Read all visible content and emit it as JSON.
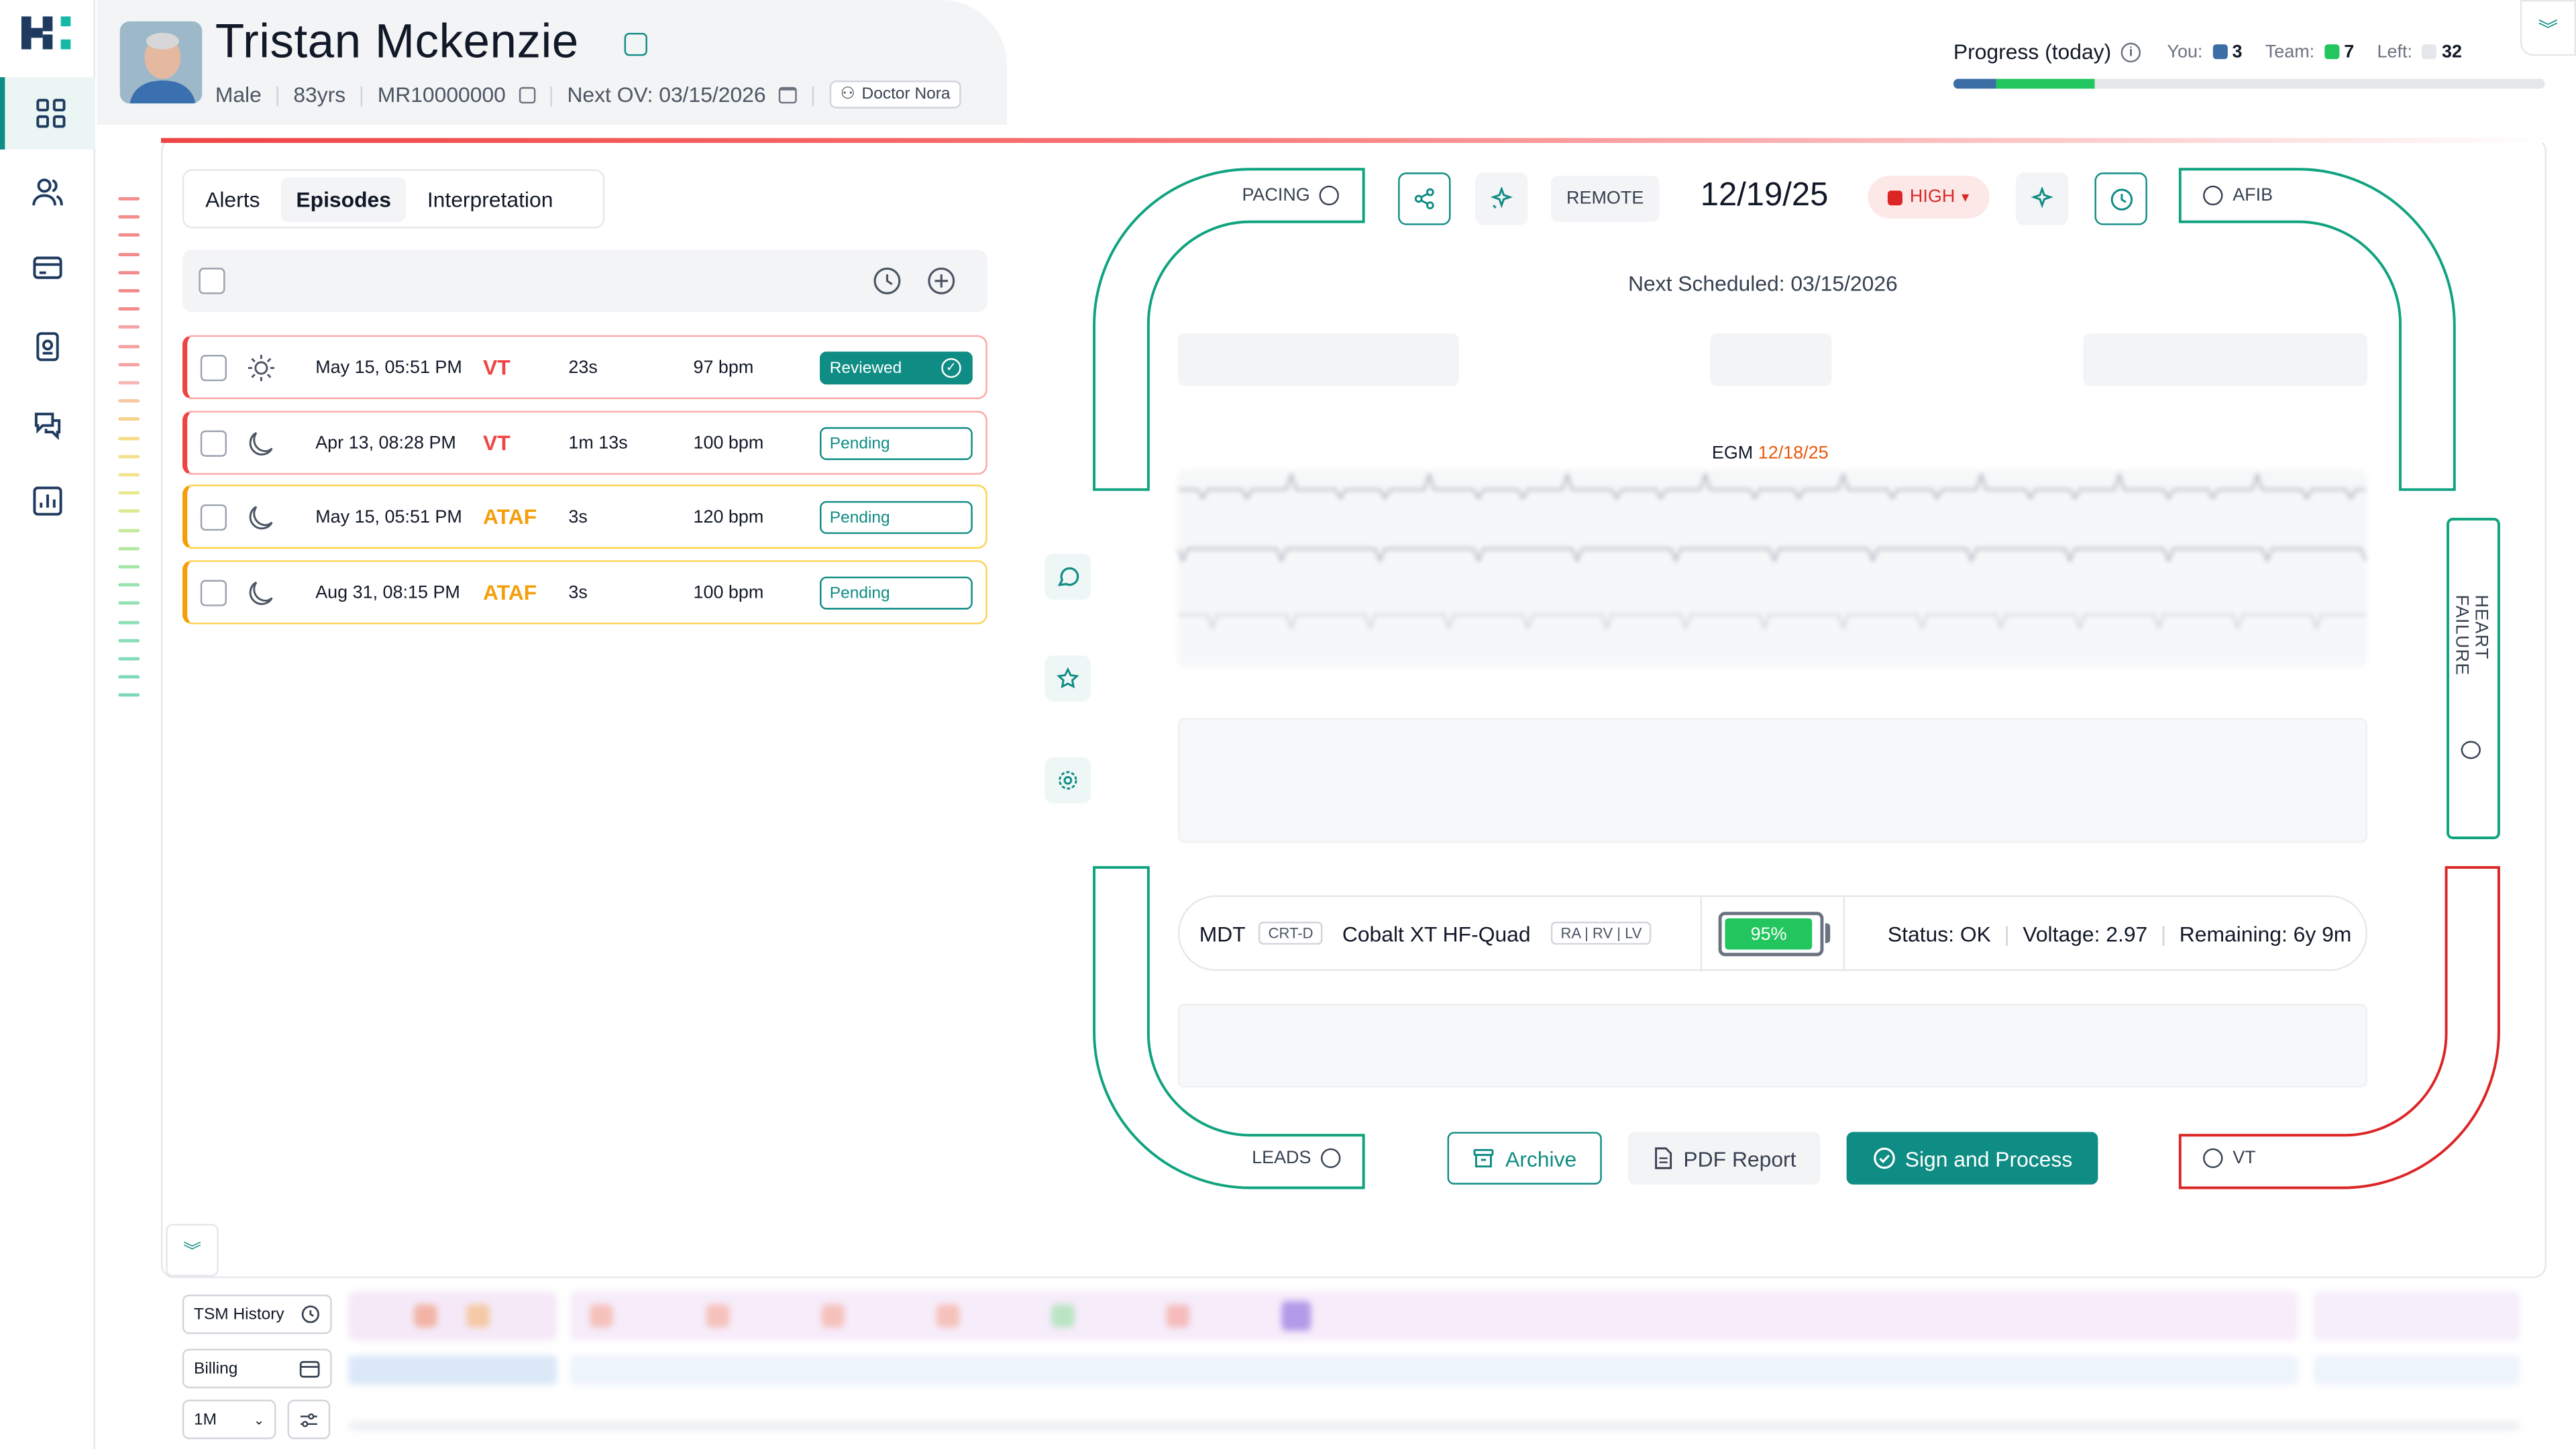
{
  "patient": {
    "name": "Tristan Mckenzie",
    "sex": "Male",
    "age": "83yrs",
    "mrn": "MR10000000",
    "next_ov": "Next OV: 03/15/2026",
    "doctor": "Doctor Nora"
  },
  "progress": {
    "label": "Progress (today)",
    "you_label": "You:",
    "you_value": "3",
    "team_label": "Team:",
    "team_value": "7",
    "left_label": "Left:",
    "left_value": "32",
    "you_fraction": 0.071,
    "team_fraction": 0.167,
    "you_color": "#3b6ea5",
    "team_color": "#22c55e"
  },
  "nav": {
    "items": [
      "dashboard-icon",
      "users-icon",
      "card-icon",
      "badge-icon",
      "chat-icon",
      "chart-icon"
    ]
  },
  "tabs": [
    {
      "label": "Alerts"
    },
    {
      "label": "Episodes"
    },
    {
      "label": "Interpretation"
    }
  ],
  "episodes": [
    {
      "icon": "sun-icon",
      "date": "May 15, 05:51 PM",
      "type": "VT",
      "duration": "23s",
      "rate": "97 bpm",
      "status": "Reviewed",
      "color": "#ef4444"
    },
    {
      "icon": "moon-icon",
      "date": "Apr 13, 08:28 PM",
      "type": "VT",
      "duration": "1m 13s",
      "rate": "100 bpm",
      "status": "Pending",
      "color": "#ef4444"
    },
    {
      "icon": "moon-icon",
      "date": "May 15, 05:51 PM",
      "type": "ATAF",
      "duration": "3s",
      "rate": "120 bpm",
      "status": "Pending",
      "color": "#f59e0b"
    },
    {
      "icon": "moon-icon",
      "date": "Aug 31, 08:15 PM",
      "type": "ATAF",
      "duration": "3s",
      "rate": "100 bpm",
      "status": "Pending",
      "color": "#f59e0b"
    }
  ],
  "frame": {
    "pacing": "PACING",
    "afib": "AFIB",
    "heart_failure": "HEART FAILURE",
    "leads": "LEADS",
    "vt": "VT"
  },
  "transmission": {
    "remote": "REMOTE",
    "date": "12/19/25",
    "priority": "HIGH",
    "next_scheduled": "Next Scheduled: 03/15/2026",
    "egm_label": "EGM",
    "egm_date": "12/18/25"
  },
  "device": {
    "maker": "MDT",
    "type": "CRT-D",
    "model": "Cobalt XT HF-Quad",
    "leads": "RA | RV | LV",
    "battery": "95%",
    "battery_fraction": 0.95,
    "status": "Status: OK",
    "voltage": "Voltage: 2.97",
    "remaining": "Remaining: 6y 9m"
  },
  "actions": {
    "archive": "Archive",
    "pdf": "PDF Report",
    "sign": "Sign and Process"
  },
  "bottom": {
    "tsm_history": "TSM History",
    "billing": "Billing",
    "range": "1M"
  },
  "colors": {
    "accent": "#0f8c84",
    "green_frame": "#10a37f",
    "red_frame": "#dc2626"
  }
}
